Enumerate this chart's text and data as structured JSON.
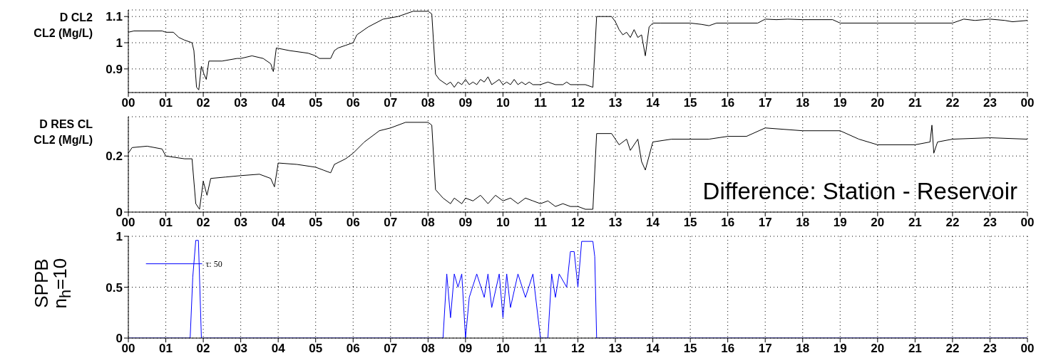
{
  "chart_data": [
    {
      "type": "line",
      "ylabel": "D CL2\nCL2 (Mg/L)",
      "xlim": [
        0,
        24
      ],
      "ylim": [
        0.81,
        1.125
      ],
      "yticks": [
        0.9,
        1,
        1.1
      ],
      "grid": true,
      "xticks": [
        {
          "value": 0,
          "label": "00"
        },
        {
          "value": 1,
          "label": "01"
        },
        {
          "value": 2,
          "label": "02"
        },
        {
          "value": 3,
          "label": "03"
        },
        {
          "value": 4,
          "label": "04"
        },
        {
          "value": 5,
          "label": "05"
        },
        {
          "value": 6,
          "label": "06"
        },
        {
          "value": 7,
          "label": "07"
        },
        {
          "value": 8,
          "label": "08"
        },
        {
          "value": 9,
          "label": "09"
        },
        {
          "value": 10,
          "label": "10"
        },
        {
          "value": 11,
          "label": "11"
        },
        {
          "value": 12,
          "label": "12"
        },
        {
          "value": 13,
          "label": "13"
        },
        {
          "value": 14,
          "label": "14"
        },
        {
          "value": 15,
          "label": "15"
        },
        {
          "value": 16,
          "label": "16"
        },
        {
          "value": 17,
          "label": "17"
        },
        {
          "value": 18,
          "label": "18"
        },
        {
          "value": 19,
          "label": "19"
        },
        {
          "value": 20,
          "label": "20"
        },
        {
          "value": 21,
          "label": "21"
        },
        {
          "value": 22,
          "label": "22"
        },
        {
          "value": 23,
          "label": "23"
        },
        {
          "value": 24,
          "label": "00"
        }
      ],
      "series": [
        {
          "color": "#000000",
          "x": [
            0,
            0.15,
            0.9,
            1.0,
            1.2,
            1.35,
            1.5,
            1.7,
            1.75,
            1.82,
            1.88,
            1.95,
            2.02,
            2.08,
            2.15,
            2.5,
            2.9,
            3.0,
            3.3,
            3.6,
            3.8,
            3.87,
            3.95,
            4.3,
            4.8,
            5.0,
            5.1,
            5.4,
            5.5,
            5.6,
            5.8,
            6.0,
            6.1,
            6.4,
            6.8,
            7.2,
            7.6,
            8.0,
            8.1,
            8.2,
            8.3,
            8.5,
            8.6,
            8.7,
            8.8,
            8.9,
            9.0,
            9.1,
            9.2,
            9.3,
            9.4,
            9.5,
            9.6,
            9.7,
            9.8,
            9.9,
            10.0,
            10.1,
            10.2,
            10.3,
            10.4,
            10.5,
            10.6,
            10.7,
            10.8,
            11.0,
            11.2,
            11.4,
            11.6,
            11.7,
            11.8,
            12.0,
            12.2,
            12.4,
            12.5,
            12.9,
            13.0,
            13.1,
            13.2,
            13.3,
            13.4,
            13.5,
            13.6,
            13.7,
            13.8,
            13.9,
            14.0,
            14.2,
            15.0,
            15.3,
            15.5,
            15.7,
            16.0,
            16.8,
            17.0,
            17.3,
            17.6,
            18.0,
            18.5,
            18.8,
            19.0,
            20.0,
            21.0,
            22.0,
            22.3,
            22.6,
            23.0,
            23.4,
            23.6,
            24.0
          ],
          "values": [
            1.04,
            1.045,
            1.045,
            1.04,
            1.04,
            1.02,
            1.01,
            1.0,
            0.97,
            0.83,
            0.82,
            0.91,
            0.88,
            0.86,
            0.93,
            0.93,
            0.94,
            0.94,
            0.95,
            0.94,
            0.92,
            0.89,
            0.98,
            0.97,
            0.96,
            0.95,
            0.94,
            0.94,
            0.97,
            0.98,
            0.99,
            1.0,
            1.03,
            1.06,
            1.09,
            1.1,
            1.12,
            1.12,
            1.11,
            0.88,
            0.86,
            0.84,
            0.85,
            0.83,
            0.85,
            0.84,
            0.86,
            0.84,
            0.85,
            0.84,
            0.86,
            0.85,
            0.87,
            0.84,
            0.85,
            0.86,
            0.84,
            0.85,
            0.84,
            0.86,
            0.84,
            0.85,
            0.84,
            0.85,
            0.84,
            0.84,
            0.85,
            0.84,
            0.84,
            0.85,
            0.84,
            0.84,
            0.84,
            0.83,
            1.1,
            1.1,
            1.08,
            1.05,
            1.03,
            1.04,
            1.02,
            1.05,
            1.02,
            1.03,
            0.95,
            1.06,
            1.075,
            1.075,
            1.075,
            1.07,
            1.065,
            1.075,
            1.075,
            1.075,
            1.09,
            1.088,
            1.09,
            1.088,
            1.088,
            1.088,
            1.075,
            1.075,
            1.075,
            1.075,
            1.09,
            1.085,
            1.09,
            1.085,
            1.08,
            1.085
          ]
        }
      ]
    },
    {
      "type": "line",
      "ylabel": "D RES CL\nCL2 (Mg/L)",
      "xlim": [
        0,
        24
      ],
      "ylim": [
        0,
        0.34
      ],
      "yticks": [
        0,
        0.2
      ],
      "grid": true,
      "annotations": [
        "Difference: Station - Reservoir"
      ],
      "xticks": [
        {
          "value": 0,
          "label": "00"
        },
        {
          "value": 1,
          "label": "01"
        },
        {
          "value": 2,
          "label": "02"
        },
        {
          "value": 3,
          "label": "03"
        },
        {
          "value": 4,
          "label": "04"
        },
        {
          "value": 5,
          "label": "05"
        },
        {
          "value": 6,
          "label": "06"
        },
        {
          "value": 7,
          "label": "07"
        },
        {
          "value": 8,
          "label": "08"
        },
        {
          "value": 9,
          "label": "09"
        },
        {
          "value": 10,
          "label": "10"
        },
        {
          "value": 11,
          "label": "11"
        },
        {
          "value": 12,
          "label": "12"
        },
        {
          "value": 13,
          "label": "13"
        },
        {
          "value": 14,
          "label": "14"
        },
        {
          "value": 15,
          "label": "15"
        },
        {
          "value": 16,
          "label": "16"
        },
        {
          "value": 17,
          "label": "17"
        },
        {
          "value": 18,
          "label": "18"
        },
        {
          "value": 19,
          "label": "19"
        },
        {
          "value": 20,
          "label": "20"
        },
        {
          "value": 21,
          "label": "21"
        },
        {
          "value": 22,
          "label": "22"
        },
        {
          "value": 23,
          "label": "23"
        },
        {
          "value": 24,
          "label": "00"
        }
      ],
      "series": [
        {
          "color": "#000000",
          "x": [
            0,
            0.1,
            0.5,
            0.9,
            1.0,
            1.5,
            1.7,
            1.8,
            1.9,
            2.0,
            2.1,
            2.2,
            2.6,
            3.0,
            3.5,
            3.8,
            3.9,
            4.0,
            4.5,
            5.0,
            5.2,
            5.4,
            5.5,
            5.8,
            6.0,
            6.3,
            6.7,
            7.0,
            7.4,
            8.0,
            8.1,
            8.2,
            8.4,
            8.6,
            8.7,
            8.9,
            9.0,
            9.2,
            9.4,
            9.6,
            9.8,
            10.0,
            10.2,
            10.4,
            10.6,
            10.8,
            11.0,
            11.2,
            11.4,
            11.6,
            11.8,
            12.0,
            12.2,
            12.4,
            12.5,
            12.9,
            13.1,
            13.3,
            13.4,
            13.6,
            13.7,
            13.8,
            14.0,
            14.5,
            15.0,
            15.5,
            16.0,
            16.5,
            17.0,
            18.0,
            19.0,
            19.5,
            20.0,
            21.0,
            21.4,
            21.45,
            21.5,
            21.6,
            22.0,
            23.0,
            24.0
          ],
          "values": [
            0.21,
            0.23,
            0.235,
            0.225,
            0.2,
            0.19,
            0.19,
            0.03,
            0.01,
            0.11,
            0.06,
            0.12,
            0.125,
            0.13,
            0.135,
            0.12,
            0.09,
            0.175,
            0.17,
            0.16,
            0.15,
            0.14,
            0.17,
            0.19,
            0.21,
            0.25,
            0.29,
            0.3,
            0.32,
            0.32,
            0.31,
            0.08,
            0.05,
            0.03,
            0.05,
            0.03,
            0.05,
            0.04,
            0.06,
            0.03,
            0.06,
            0.04,
            0.05,
            0.03,
            0.05,
            0.04,
            0.03,
            0.04,
            0.02,
            0.03,
            0.02,
            0.02,
            0.01,
            0.01,
            0.28,
            0.28,
            0.24,
            0.26,
            0.22,
            0.26,
            0.18,
            0.15,
            0.25,
            0.26,
            0.26,
            0.26,
            0.27,
            0.27,
            0.3,
            0.29,
            0.29,
            0.26,
            0.24,
            0.24,
            0.25,
            0.31,
            0.21,
            0.25,
            0.26,
            0.265,
            0.26
          ]
        }
      ]
    },
    {
      "type": "line",
      "ylabel": "SPPB\nn$_{h}$=10",
      "xlim": [
        0,
        24
      ],
      "ylim": [
        0,
        1
      ],
      "yticks": [
        0,
        0.5,
        1
      ],
      "grid": true,
      "annotations": [
        {
          "text": "τ: 50",
          "x": 1.97,
          "y": 0.73
        }
      ],
      "xticks": [
        {
          "value": 0,
          "label": "00"
        },
        {
          "value": 1,
          "label": "01"
        },
        {
          "value": 2,
          "label": "02"
        },
        {
          "value": 3,
          "label": "03"
        },
        {
          "value": 4,
          "label": "04"
        },
        {
          "value": 5,
          "label": "05"
        },
        {
          "value": 6,
          "label": "06"
        },
        {
          "value": 7,
          "label": "07"
        },
        {
          "value": 8,
          "label": "08"
        },
        {
          "value": 9,
          "label": "09"
        },
        {
          "value": 10,
          "label": "10"
        },
        {
          "value": 11,
          "label": "11"
        },
        {
          "value": 12,
          "label": "12"
        },
        {
          "value": 13,
          "label": "13"
        },
        {
          "value": 14,
          "label": "14"
        },
        {
          "value": 15,
          "label": "15"
        },
        {
          "value": 16,
          "label": "16"
        },
        {
          "value": 17,
          "label": "17"
        },
        {
          "value": 18,
          "label": "18"
        },
        {
          "value": 19,
          "label": "19"
        },
        {
          "value": 20,
          "label": "20"
        },
        {
          "value": 21,
          "label": "21"
        },
        {
          "value": 22,
          "label": "22"
        },
        {
          "value": 23,
          "label": "23"
        },
        {
          "value": 24,
          "label": "00"
        }
      ],
      "series": [
        {
          "color": "#0000ff",
          "x": [
            0,
            1.65,
            1.72,
            1.8,
            1.87,
            1.95,
            8.4,
            8.5,
            8.6,
            8.7,
            8.8,
            8.9,
            9.0,
            9.1,
            9.3,
            9.5,
            9.6,
            9.7,
            9.9,
            10.0,
            10.1,
            10.2,
            10.4,
            10.6,
            10.8,
            11.0,
            11.2,
            11.3,
            11.4,
            11.5,
            11.7,
            11.8,
            11.9,
            12.0,
            12.1,
            12.2,
            12.4,
            12.45,
            12.5,
            24
          ],
          "values": [
            0,
            0,
            0.6,
            0.96,
            0.96,
            0,
            0,
            0.63,
            0.2,
            0.63,
            0.5,
            0.63,
            0,
            0.4,
            0.63,
            0.4,
            0.63,
            0.3,
            0.63,
            0.2,
            0.63,
            0.3,
            0.63,
            0.4,
            0.63,
            0,
            0,
            0.63,
            0.4,
            0.63,
            0.5,
            0.85,
            0.85,
            0.5,
            0.95,
            0.95,
            0.95,
            0.8,
            0,
            0
          ]
        },
        {
          "color": "#0000ff",
          "x": [
            0.47,
            1.97
          ],
          "values": [
            0.73,
            0.73
          ]
        }
      ]
    }
  ]
}
